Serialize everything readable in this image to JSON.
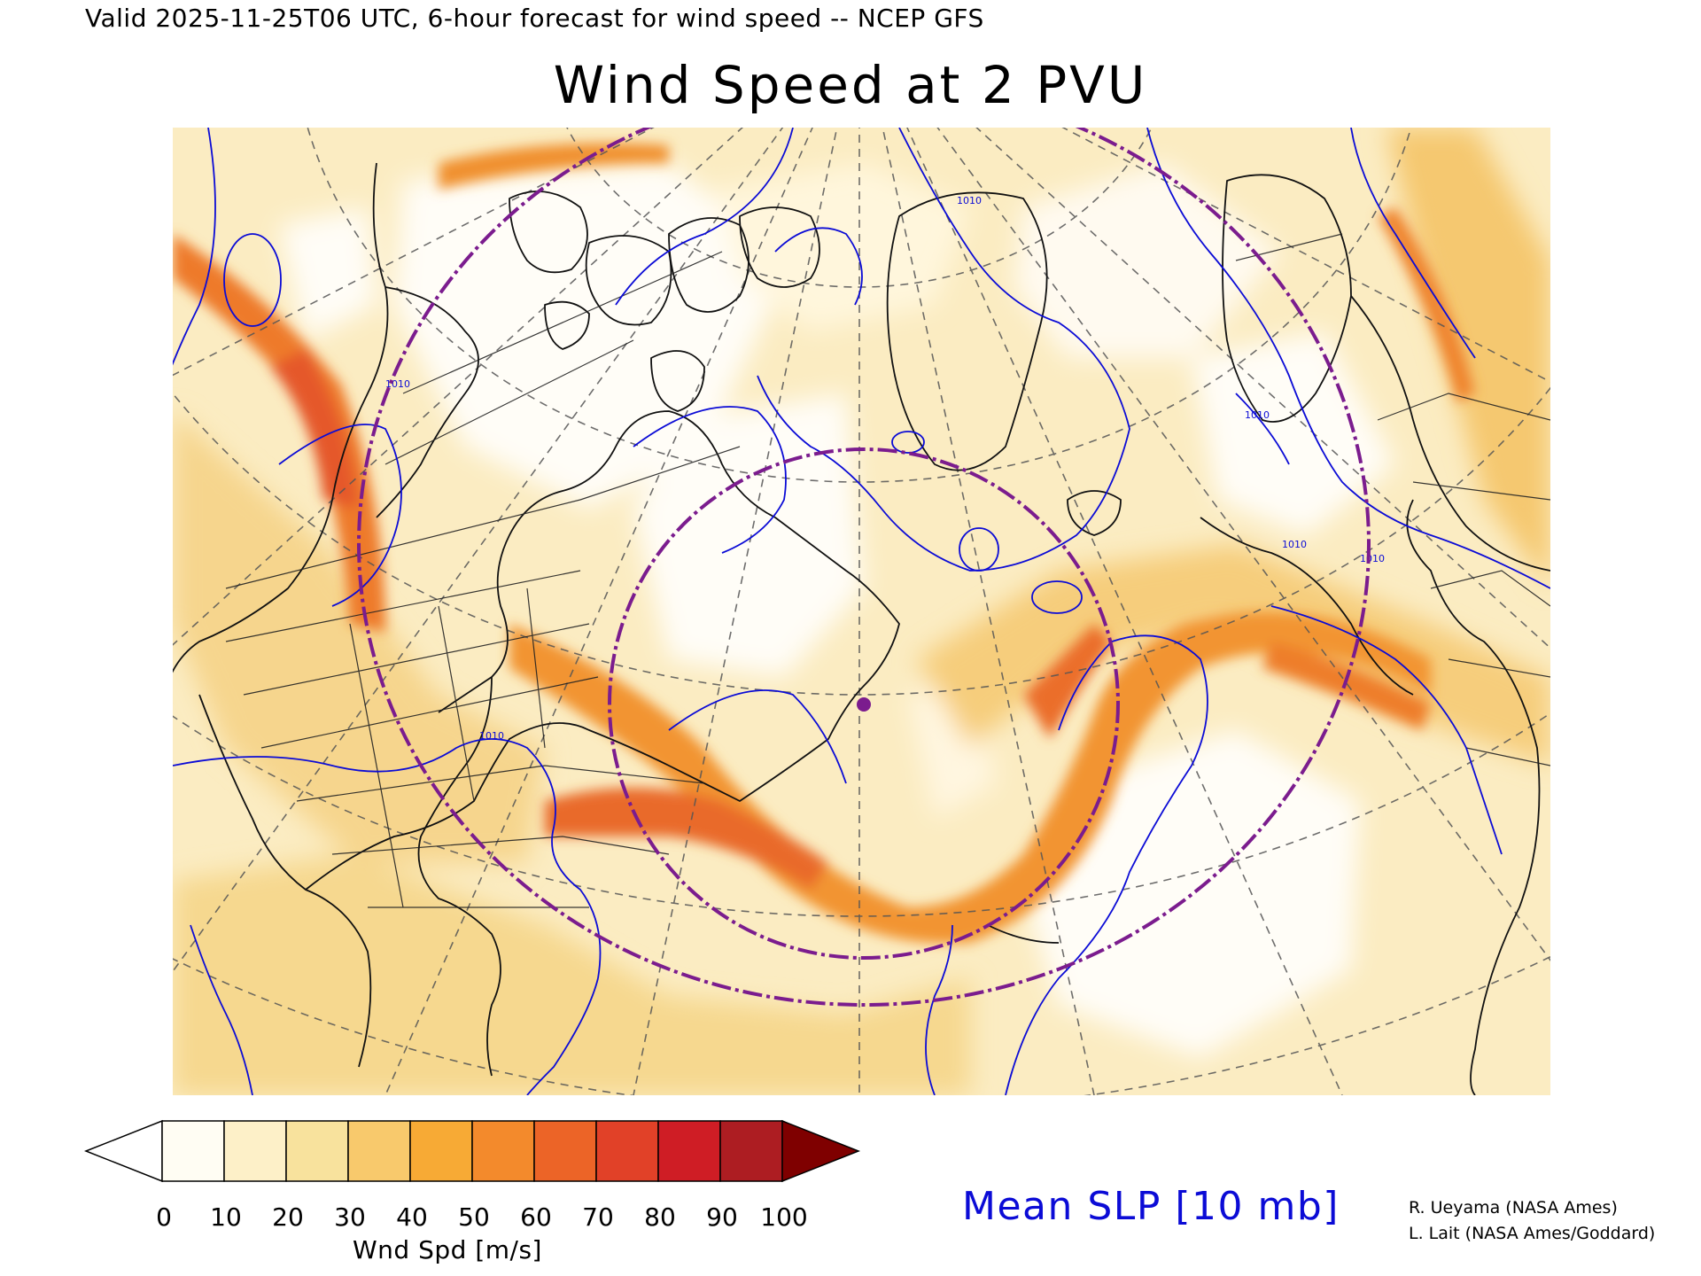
{
  "header": {
    "valid_line": "Valid 2025-11-25T06 UTC, 6-hour forecast for wind speed -- NCEP GFS",
    "title": "Wind Speed at 2 PVU"
  },
  "colorbar": {
    "unit_label": "Wnd Spd [m/s]",
    "ticks": [
      "0",
      "10",
      "20",
      "30",
      "40",
      "50",
      "60",
      "70",
      "80",
      "90",
      "100"
    ],
    "under_color": "#ffffff",
    "over_color": "#7f0000",
    "bins": [
      {
        "range": "0-10",
        "color": "#fffdf3"
      },
      {
        "range": "10-20",
        "color": "#fdf0c8"
      },
      {
        "range": "20-30",
        "color": "#f8e29d"
      },
      {
        "range": "30-40",
        "color": "#f8c96c"
      },
      {
        "range": "40-50",
        "color": "#f7aa35"
      },
      {
        "range": "50-60",
        "color": "#f38a2c"
      },
      {
        "range": "60-70",
        "color": "#ec6427"
      },
      {
        "range": "70-80",
        "color": "#e14128"
      },
      {
        "range": "80-90",
        "color": "#cf1d25"
      },
      {
        "range": "90-100",
        "color": "#ad1d22"
      }
    ]
  },
  "overlay": {
    "label": "Mean SLP [10 mb]",
    "color": "#0b0bd6",
    "contour_label": "1010"
  },
  "credits": [
    "R. Ueyama (NASA Ames)",
    "L. Lait (NASA Ames/Goddard)"
  ],
  "map_features": {
    "projection": "polar stereographic, North Atlantic sector",
    "range_ring_color": "#7b1c8e",
    "station_marker_color": "#7b1c8e",
    "coastline_color": "#000000",
    "graticule_color": "#555555"
  }
}
